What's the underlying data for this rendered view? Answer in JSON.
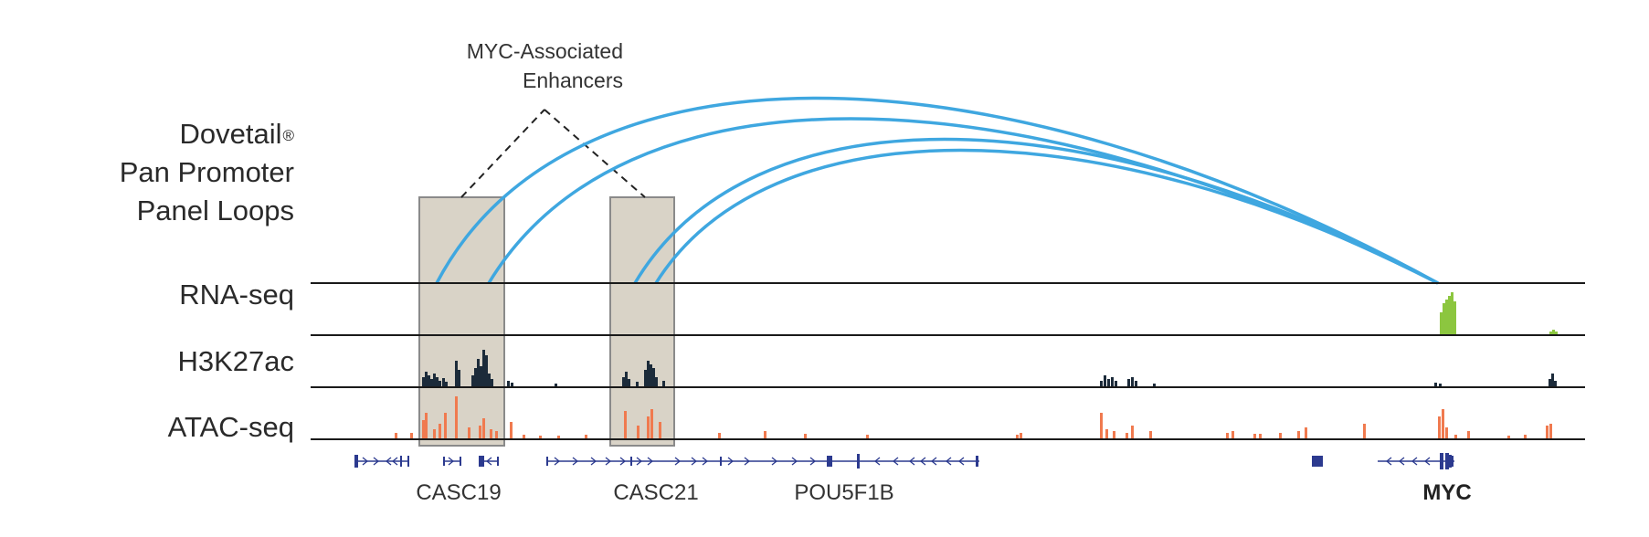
{
  "panel_title": {
    "line1": "Dovetail",
    "mark": "®",
    "line2": "Pan Promoter",
    "line3": "Panel Loops"
  },
  "annotation": {
    "line1": "MYC-Associated",
    "line2": "Enhancers"
  },
  "tracks": [
    {
      "id": "rna",
      "label": "RNA-seq",
      "color": "#8cc63f"
    },
    {
      "id": "h3k27ac",
      "label": "H3K27ac",
      "color": "#1c2b3a"
    },
    {
      "id": "atac",
      "label": "ATAC-seq",
      "color": "#f07a4f"
    }
  ],
  "genes": [
    {
      "name": "CASC19",
      "bold": false
    },
    {
      "name": "CASC21",
      "bold": false
    },
    {
      "name": "POU5F1B",
      "bold": false
    },
    {
      "name": "MYC",
      "bold": true
    }
  ],
  "colors": {
    "loop": "#3fa7e0",
    "highlight_fill": "#d9d3c7",
    "highlight_stroke": "#8a8a8a",
    "gene_model": "#2c3a8f",
    "axis": "#1a1a1a"
  }
}
